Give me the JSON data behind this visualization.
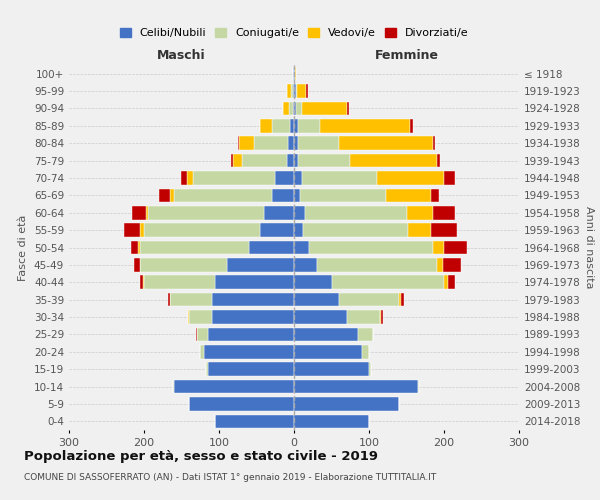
{
  "age_groups": [
    "0-4",
    "5-9",
    "10-14",
    "15-19",
    "20-24",
    "25-29",
    "30-34",
    "35-39",
    "40-44",
    "45-49",
    "50-54",
    "55-59",
    "60-64",
    "65-69",
    "70-74",
    "75-79",
    "80-84",
    "85-89",
    "90-94",
    "95-99",
    "100+"
  ],
  "birth_years": [
    "2014-2018",
    "2009-2013",
    "2004-2008",
    "1999-2003",
    "1994-1998",
    "1989-1993",
    "1984-1988",
    "1979-1983",
    "1974-1978",
    "1969-1973",
    "1964-1968",
    "1959-1963",
    "1954-1958",
    "1949-1953",
    "1944-1948",
    "1939-1943",
    "1934-1938",
    "1929-1933",
    "1924-1928",
    "1919-1923",
    "≤ 1918"
  ],
  "colors": {
    "celibe": "#4472c4",
    "coniugato": "#c5d8a4",
    "vedovo": "#ffc000",
    "divorziato": "#c00000"
  },
  "maschi": {
    "celibe": [
      105,
      140,
      160,
      115,
      120,
      115,
      110,
      110,
      105,
      90,
      60,
      45,
      40,
      30,
      25,
      10,
      8,
      5,
      2,
      2,
      1
    ],
    "coniugato": [
      0,
      0,
      2,
      2,
      5,
      15,
      30,
      55,
      95,
      115,
      145,
      155,
      155,
      130,
      110,
      60,
      45,
      25,
      5,
      2,
      0
    ],
    "vedovo": [
      0,
      0,
      0,
      0,
      0,
      0,
      1,
      0,
      1,
      1,
      3,
      5,
      3,
      5,
      8,
      12,
      20,
      15,
      8,
      5,
      1
    ],
    "divorziato": [
      0,
      0,
      0,
      0,
      0,
      1,
      1,
      3,
      5,
      8,
      10,
      22,
      18,
      15,
      8,
      2,
      2,
      0,
      0,
      0,
      0
    ]
  },
  "femmine": {
    "nubile": [
      100,
      140,
      165,
      100,
      90,
      85,
      70,
      60,
      50,
      30,
      20,
      12,
      15,
      8,
      10,
      5,
      5,
      5,
      3,
      2,
      1
    ],
    "coniugata": [
      0,
      0,
      2,
      3,
      10,
      20,
      45,
      80,
      150,
      160,
      165,
      140,
      135,
      115,
      100,
      70,
      55,
      30,
      8,
      2,
      0
    ],
    "vedova": [
      0,
      0,
      0,
      0,
      0,
      0,
      1,
      2,
      5,
      8,
      15,
      30,
      35,
      60,
      90,
      115,
      125,
      120,
      60,
      12,
      1
    ],
    "divorziata": [
      0,
      0,
      0,
      0,
      0,
      0,
      2,
      5,
      10,
      25,
      30,
      35,
      30,
      10,
      15,
      4,
      3,
      3,
      2,
      2,
      0
    ]
  },
  "xlim": 300,
  "title": "Popolazione per età, sesso e stato civile - 2019",
  "subtitle": "COMUNE DI SASSOFERRATO (AN) - Dati ISTAT 1° gennaio 2019 - Elaborazione TUTTITALIA.IT",
  "ylabel_left": "Fasce di età",
  "ylabel_right": "Anni di nascita",
  "maschi_label": "Maschi",
  "femmine_label": "Femmine",
  "legend_labels": [
    "Celibi/Nubili",
    "Coniugati/e",
    "Vedovi/e",
    "Divorziati/e"
  ],
  "background_color": "#f0f0f0",
  "grid_color": "#cccccc"
}
